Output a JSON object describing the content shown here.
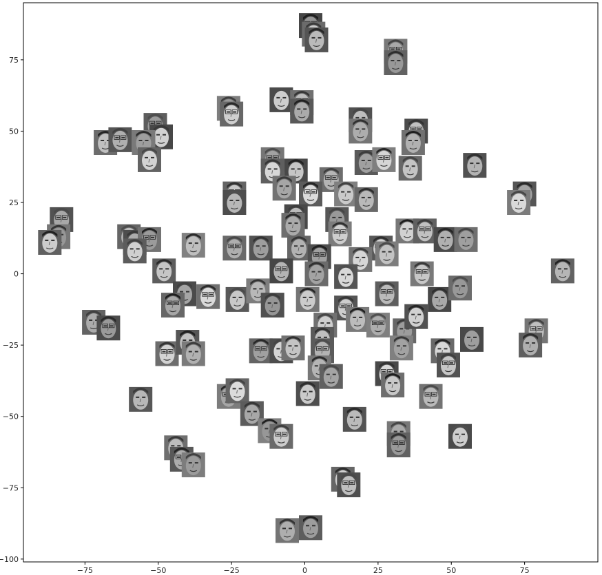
{
  "chart_data": {
    "type": "scatter",
    "title": "",
    "xlabel": "",
    "ylabel": "",
    "xlim": [
      -96,
      100
    ],
    "ylim": [
      -101,
      95
    ],
    "grid": false,
    "legend": "none",
    "marker": "grayscale face thumbnail",
    "x_ticks": [
      {
        "value": -75,
        "label": "−75"
      },
      {
        "value": -50,
        "label": "−50"
      },
      {
        "value": -25,
        "label": "−25"
      },
      {
        "value": 0,
        "label": "0"
      },
      {
        "value": 25,
        "label": "25"
      },
      {
        "value": 50,
        "label": "50"
      },
      {
        "value": 75,
        "label": "75"
      }
    ],
    "y_ticks": [
      {
        "value": 75,
        "label": "75"
      },
      {
        "value": 50,
        "label": "50"
      },
      {
        "value": 25,
        "label": "25"
      },
      {
        "value": 0,
        "label": "0"
      },
      {
        "value": -25,
        "label": "−25"
      },
      {
        "value": -50,
        "label": "−50"
      },
      {
        "value": -75,
        "label": "−75"
      },
      {
        "value": -100,
        "label": "−100"
      }
    ],
    "points": [
      {
        "x": 2,
        "y": 87
      },
      {
        "x": 3,
        "y": 84
      },
      {
        "x": 4,
        "y": 82
      },
      {
        "x": 31,
        "y": 78
      },
      {
        "x": 31,
        "y": 74
      },
      {
        "x": -8,
        "y": 61
      },
      {
        "x": -1,
        "y": 60
      },
      {
        "x": -1,
        "y": 57
      },
      {
        "x": -26,
        "y": 58
      },
      {
        "x": -25,
        "y": 56
      },
      {
        "x": 19,
        "y": 54
      },
      {
        "x": 19,
        "y": 50
      },
      {
        "x": -51,
        "y": 52
      },
      {
        "x": -49,
        "y": 48
      },
      {
        "x": -68,
        "y": 46
      },
      {
        "x": -63,
        "y": 47
      },
      {
        "x": -55,
        "y": 46
      },
      {
        "x": -53,
        "y": 40
      },
      {
        "x": 38,
        "y": 50
      },
      {
        "x": 37,
        "y": 46
      },
      {
        "x": 21,
        "y": 39
      },
      {
        "x": 27,
        "y": 40
      },
      {
        "x": 36,
        "y": 37
      },
      {
        "x": 58,
        "y": 38
      },
      {
        "x": -11,
        "y": 40
      },
      {
        "x": -11,
        "y": 36
      },
      {
        "x": -3,
        "y": 36
      },
      {
        "x": 9,
        "y": 33
      },
      {
        "x": 75,
        "y": 28
      },
      {
        "x": 73,
        "y": 25
      },
      {
        "x": -24,
        "y": 28
      },
      {
        "x": -24,
        "y": 25
      },
      {
        "x": -7,
        "y": 30
      },
      {
        "x": 2,
        "y": 28
      },
      {
        "x": 14,
        "y": 28
      },
      {
        "x": 21,
        "y": 26
      },
      {
        "x": -83,
        "y": 19
      },
      {
        "x": -84,
        "y": 13
      },
      {
        "x": -87,
        "y": 11
      },
      {
        "x": -3,
        "y": 20
      },
      {
        "x": -4,
        "y": 17
      },
      {
        "x": 11,
        "y": 19
      },
      {
        "x": 12,
        "y": 14
      },
      {
        "x": -60,
        "y": 13
      },
      {
        "x": -58,
        "y": 11
      },
      {
        "x": -53,
        "y": 12
      },
      {
        "x": -58,
        "y": 8
      },
      {
        "x": -38,
        "y": 10
      },
      {
        "x": -24,
        "y": 9
      },
      {
        "x": -15,
        "y": 9
      },
      {
        "x": 35,
        "y": 15
      },
      {
        "x": 41,
        "y": 15
      },
      {
        "x": 48,
        "y": 12
      },
      {
        "x": 55,
        "y": 12
      },
      {
        "x": 26,
        "y": 9
      },
      {
        "x": 28,
        "y": 7
      },
      {
        "x": -2,
        "y": 9
      },
      {
        "x": 5,
        "y": 6
      },
      {
        "x": 19,
        "y": 5
      },
      {
        "x": -48,
        "y": 1
      },
      {
        "x": -8,
        "y": 1
      },
      {
        "x": 4,
        "y": 0
      },
      {
        "x": 14,
        "y": -1
      },
      {
        "x": 40,
        "y": 0
      },
      {
        "x": 88,
        "y": 1
      },
      {
        "x": -41,
        "y": -7
      },
      {
        "x": -33,
        "y": -8
      },
      {
        "x": -23,
        "y": -9
      },
      {
        "x": -16,
        "y": -6
      },
      {
        "x": -45,
        "y": -11
      },
      {
        "x": -11,
        "y": -11
      },
      {
        "x": 1,
        "y": -9
      },
      {
        "x": 28,
        "y": -7
      },
      {
        "x": 46,
        "y": -9
      },
      {
        "x": 53,
        "y": -5
      },
      {
        "x": 14,
        "y": -12
      },
      {
        "x": 18,
        "y": -16
      },
      {
        "x": -72,
        "y": -17
      },
      {
        "x": -67,
        "y": -19
      },
      {
        "x": 7,
        "y": -18
      },
      {
        "x": 6,
        "y": -23
      },
      {
        "x": 25,
        "y": -18
      },
      {
        "x": 34,
        "y": -20
      },
      {
        "x": 38,
        "y": -15
      },
      {
        "x": 79,
        "y": -20
      },
      {
        "x": 77,
        "y": -25
      },
      {
        "x": 57,
        "y": -23
      },
      {
        "x": -47,
        "y": -28
      },
      {
        "x": -40,
        "y": -24
      },
      {
        "x": -38,
        "y": -28
      },
      {
        "x": -15,
        "y": -27
      },
      {
        "x": -8,
        "y": -27
      },
      {
        "x": -4,
        "y": -26
      },
      {
        "x": 6,
        "y": -27
      },
      {
        "x": 33,
        "y": -26
      },
      {
        "x": 47,
        "y": -27
      },
      {
        "x": 49,
        "y": -32
      },
      {
        "x": 5,
        "y": -33
      },
      {
        "x": 9,
        "y": -36
      },
      {
        "x": 28,
        "y": -35
      },
      {
        "x": 30,
        "y": -39
      },
      {
        "x": -56,
        "y": -44
      },
      {
        "x": -26,
        "y": -43
      },
      {
        "x": -23,
        "y": -41
      },
      {
        "x": 1,
        "y": -42
      },
      {
        "x": 43,
        "y": -43
      },
      {
        "x": -18,
        "y": -49
      },
      {
        "x": -12,
        "y": -55
      },
      {
        "x": -8,
        "y": -57
      },
      {
        "x": 17,
        "y": -51
      },
      {
        "x": 32,
        "y": -56
      },
      {
        "x": 32,
        "y": -60
      },
      {
        "x": 53,
        "y": -57
      },
      {
        "x": -44,
        "y": -61
      },
      {
        "x": -42,
        "y": -65
      },
      {
        "x": -38,
        "y": -67
      },
      {
        "x": 13,
        "y": -72
      },
      {
        "x": 15,
        "y": -74
      },
      {
        "x": -6,
        "y": -90
      },
      {
        "x": 2,
        "y": -89
      }
    ]
  }
}
